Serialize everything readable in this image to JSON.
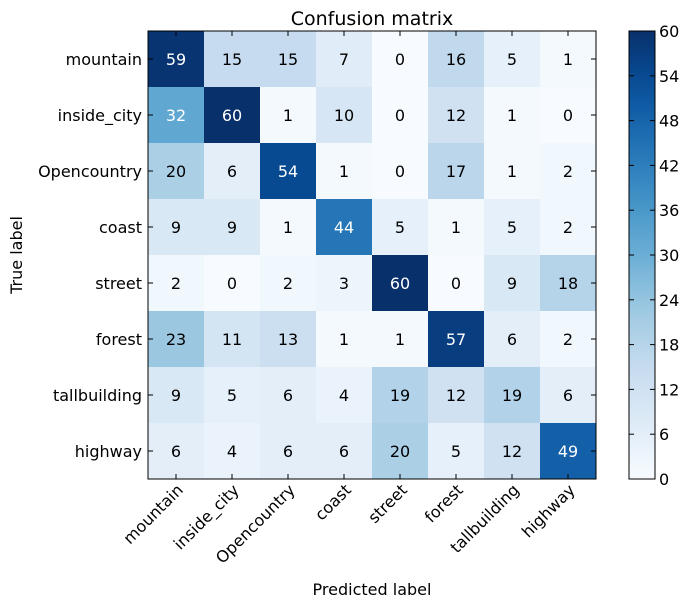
{
  "chart_data": {
    "type": "heatmap",
    "title": "Confusion matrix",
    "xlabel": "Predicted label",
    "ylabel": "True label",
    "x_categories": [
      "mountain",
      "inside_city",
      "Opencountry",
      "coast",
      "street",
      "forest",
      "tallbuilding",
      "highway"
    ],
    "y_categories": [
      "mountain",
      "inside_city",
      "Opencountry",
      "coast",
      "street",
      "forest",
      "tallbuilding",
      "highway"
    ],
    "values": [
      [
        59,
        15,
        15,
        7,
        0,
        16,
        5,
        1
      ],
      [
        32,
        60,
        1,
        10,
        0,
        12,
        1,
        0
      ],
      [
        20,
        6,
        54,
        1,
        0,
        17,
        1,
        2
      ],
      [
        9,
        9,
        1,
        44,
        5,
        1,
        5,
        2
      ],
      [
        2,
        0,
        2,
        3,
        60,
        0,
        9,
        18
      ],
      [
        23,
        11,
        13,
        1,
        1,
        57,
        6,
        2
      ],
      [
        9,
        5,
        6,
        4,
        19,
        12,
        19,
        6
      ],
      [
        6,
        4,
        6,
        6,
        20,
        5,
        12,
        49
      ]
    ],
    "colorbar": {
      "range": [
        0,
        60
      ],
      "ticks": [
        0,
        6,
        12,
        18,
        24,
        30,
        36,
        42,
        48,
        54,
        60
      ]
    },
    "colormap": "Blues",
    "text_color_dark": "#000000",
    "text_color_light": "#ffffff"
  }
}
